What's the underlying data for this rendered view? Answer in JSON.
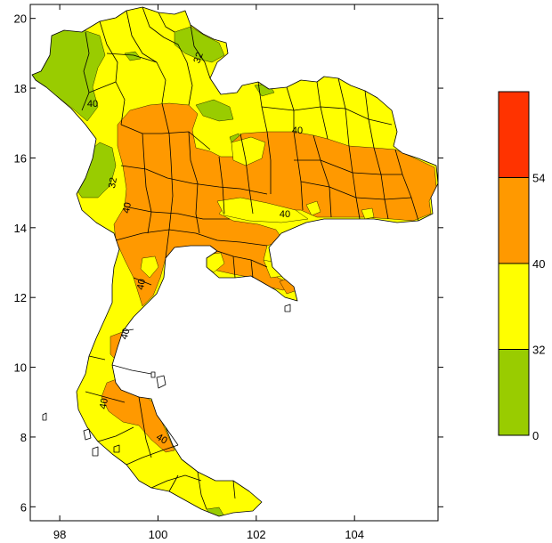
{
  "chart_data": {
    "type": "heatmap",
    "title": "",
    "xlabel": "",
    "ylabel": "",
    "xlim": [
      97.4,
      105.7
    ],
    "ylim": [
      5.6,
      20.4
    ],
    "x_ticks": [
      98,
      100,
      102,
      104
    ],
    "y_ticks": [
      6,
      8,
      10,
      12,
      14,
      16,
      18,
      20
    ],
    "contour_labels": [
      "32",
      "32",
      "40",
      "40",
      "40",
      "40",
      "40",
      "40",
      "40",
      "40"
    ],
    "legend": {
      "placement": "right",
      "bins": [
        {
          "range": [
            0,
            32
          ],
          "color": "#99cc00"
        },
        {
          "range": [
            32,
            40
          ],
          "color": "#ffff00"
        },
        {
          "range": [
            40,
            54
          ],
          "color": "#ff9900"
        },
        {
          "range": [
            54,
            null
          ],
          "color": "#ff3300"
        }
      ],
      "tick_labels": [
        "0",
        "32",
        "40",
        "54"
      ]
    }
  },
  "colors": {
    "low": "#99cc00",
    "mid": "#ffff00",
    "high": "#ff9900",
    "top": "#ff3300"
  }
}
